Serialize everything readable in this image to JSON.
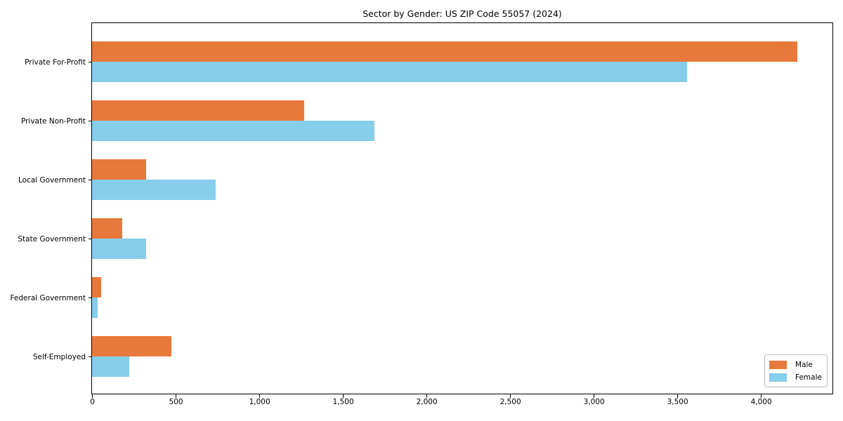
{
  "title": "Sector by Gender: US ZIP Code 55057 (2024)",
  "colors": {
    "male": "#E8793D",
    "female": "#87CEEB",
    "spine": "#000000",
    "legend_border": "#bdbdbd",
    "background": "#ffffff"
  },
  "legend": {
    "position": "lower right",
    "items": [
      {
        "label": "Male"
      },
      {
        "label": "Female"
      }
    ]
  },
  "chart_data": {
    "type": "bar",
    "orientation": "horizontal",
    "title": "Sector by Gender: US ZIP Code 55057 (2024)",
    "categories": [
      "Private For-Profit",
      "Private Non-Profit",
      "Local Government",
      "State Government",
      "Federal Government",
      "Self-Employed"
    ],
    "series": [
      {
        "name": "Male",
        "color": "#E8793D",
        "values": [
          4220,
          1270,
          322,
          182,
          53,
          475
        ]
      },
      {
        "name": "Female",
        "color": "#87CEEB",
        "values": [
          3558,
          1690,
          738,
          322,
          32,
          221
        ]
      }
    ],
    "xlabel": "",
    "ylabel": "",
    "x_ticks": [
      0,
      500,
      1000,
      1500,
      2000,
      2500,
      3000,
      3500,
      4000
    ],
    "x_tick_labels": [
      "0",
      "500",
      "1,000",
      "1,500",
      "2,000",
      "2,500",
      "3,000",
      "3,500",
      "4,000"
    ],
    "xlim": [
      0,
      4433
    ],
    "grid": false,
    "legend_position": "lower right"
  }
}
